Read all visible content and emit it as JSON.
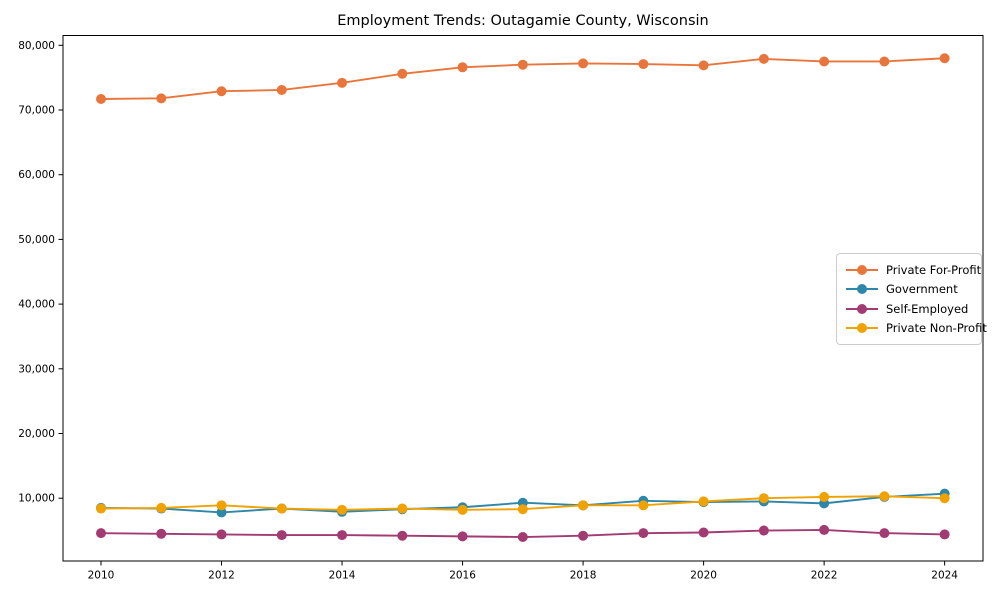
{
  "chart_data": {
    "type": "line",
    "title": "Employment Trends: Outagamie County, Wisconsin",
    "xlabel": "",
    "ylabel": "",
    "grid": false,
    "legend_position": "center right",
    "x": [
      2010,
      2011,
      2012,
      2013,
      2014,
      2015,
      2016,
      2017,
      2018,
      2019,
      2020,
      2021,
      2022,
      2023,
      2024
    ],
    "x_tick_values": [
      2010,
      2012,
      2014,
      2016,
      2018,
      2020,
      2022,
      2024
    ],
    "x_tick_labels": [
      "2010",
      "2012",
      "2014",
      "2016",
      "2018",
      "2020",
      "2022",
      "2024"
    ],
    "y_tick_values": [
      10000,
      20000,
      30000,
      40000,
      50000,
      60000,
      70000,
      80000
    ],
    "y_tick_labels": [
      "10,000",
      "20,000",
      "30,000",
      "40,000",
      "50,000",
      "60,000",
      "70,000",
      "80,000"
    ],
    "xlim": [
      2009.3,
      2024.7
    ],
    "ylim": [
      300,
      81500
    ],
    "series": [
      {
        "name": "Private For-Profit",
        "color": "#E8763C",
        "values": [
          71700,
          71800,
          72900,
          73100,
          74200,
          75600,
          76600,
          77000,
          77200,
          77100,
          76900,
          77900,
          77500,
          77500,
          78000
        ]
      },
      {
        "name": "Government",
        "color": "#2E86A8",
        "values": [
          8500,
          8400,
          7800,
          8400,
          7900,
          8300,
          8600,
          9300,
          8900,
          9600,
          9400,
          9500,
          9200,
          10200,
          10700
        ]
      },
      {
        "name": "Self-Employed",
        "color": "#A23B72",
        "values": [
          4600,
          4500,
          4400,
          4300,
          4300,
          4200,
          4100,
          4000,
          4200,
          4600,
          4700,
          5000,
          5100,
          4600,
          4400
        ]
      },
      {
        "name": "Private Non-Profit",
        "color": "#F0A202",
        "values": [
          8400,
          8500,
          8900,
          8400,
          8200,
          8400,
          8200,
          8300,
          8900,
          8900,
          9500,
          10000,
          10200,
          10300,
          10000
        ]
      }
    ]
  }
}
